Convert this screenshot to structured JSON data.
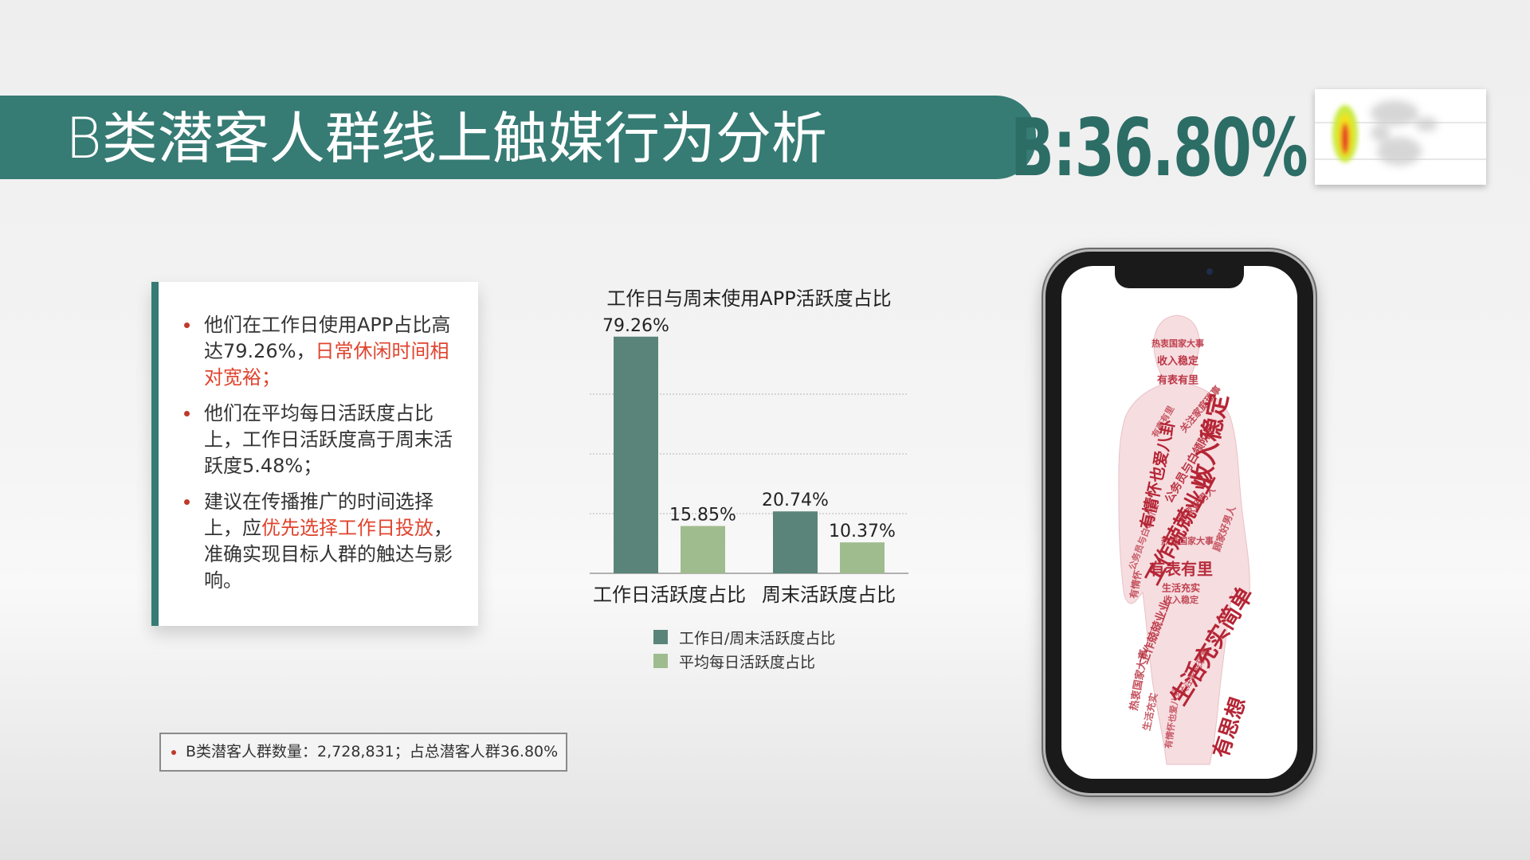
{
  "slide": {
    "title": "B类潜客人群线上触媒行为分析",
    "share": "B:36.80%"
  },
  "bullets": [
    {
      "parts": [
        {
          "text": "他们在工作日使用APP占比高达79.26%，"
        },
        {
          "text": "日常休闲时间相对宽裕；",
          "highlight": true
        }
      ]
    },
    {
      "parts": [
        {
          "text": "他们在平均每日活跃度占比上，工作日活跃度高于周末活跃度5.48%；"
        }
      ]
    },
    {
      "parts": [
        {
          "text": "建议在传播推广的时间选择上，应"
        },
        {
          "text": "优先选择工作日投放",
          "highlight": true
        },
        {
          "text": "，准确实现目标人群的触达与影响。"
        }
      ]
    }
  ],
  "footer": "B类潜客人群数量：2,728,831；占总潜客人群36.80%",
  "colors": {
    "brand": "#367b74",
    "series_dark": "#5a8479",
    "series_light": "#9fbc8e",
    "highlight": "#e0442e",
    "bullet": "#c0392b",
    "wordcloud": "#b52535"
  },
  "chart_data": {
    "type": "bar",
    "title": "工作日与周末使用APP活跃度占比",
    "categories": [
      "工作日活跃度占比",
      "周末活跃度占比"
    ],
    "series": [
      {
        "name": "工作日/周末活跃度占比",
        "values": [
          79.26,
          20.74
        ],
        "labels": [
          "79.26%",
          "20.74%"
        ]
      },
      {
        "name": "平均每日活跃度占比",
        "values": [
          15.85,
          10.37
        ],
        "labels": [
          "15.85%",
          "10.37%"
        ]
      }
    ],
    "ylim": [
      0,
      80
    ],
    "grid": true,
    "legend": "bottom"
  },
  "wordcloud": {
    "words": [
      "工作兢兢业业",
      "收入稳定",
      "有表有里",
      "热衷国家大事",
      "生活充实简单",
      "有思想",
      "公务员与白领阶层",
      "关注家庭琐事",
      "顾家好男人",
      "有情怀也爱八卦",
      "生活充实",
      "有情怀"
    ]
  }
}
